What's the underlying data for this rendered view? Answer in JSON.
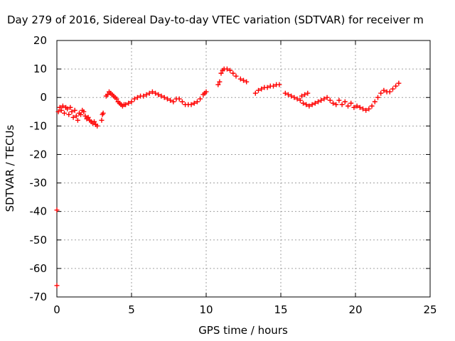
{
  "chart_data": {
    "type": "scatter",
    "title": "Day 279 of 2016, Sidereal Day-to-day VTEC variation (SDTVAR) for receiver m",
    "xlabel": "GPS time / hours",
    "ylabel": "SDTVAR / TECUs",
    "xlim": [
      0,
      25
    ],
    "ylim": [
      -70,
      20
    ],
    "x_ticks": [
      "0",
      "5",
      "10",
      "15",
      "20",
      "25"
    ],
    "y_ticks": [
      "20",
      "10",
      "0",
      "-10",
      "-20",
      "-30",
      "-40",
      "-50",
      "-60",
      "-70"
    ],
    "grid": true,
    "marker": "+",
    "series": [
      {
        "color": "#ff0000",
        "points": [
          [
            0.0,
            -39.5
          ],
          [
            0.0,
            -66.0
          ],
          [
            0.1,
            -5.0
          ],
          [
            0.2,
            -3.5
          ],
          [
            0.3,
            -4.5
          ],
          [
            0.4,
            -3.0
          ],
          [
            0.5,
            -5.5
          ],
          [
            0.6,
            -3.5
          ],
          [
            0.7,
            -4.0
          ],
          [
            0.8,
            -6.0
          ],
          [
            0.9,
            -3.5
          ],
          [
            1.0,
            -5.0
          ],
          [
            1.1,
            -7.0
          ],
          [
            1.2,
            -4.5
          ],
          [
            1.3,
            -6.5
          ],
          [
            1.4,
            -8.0
          ],
          [
            1.5,
            -5.5
          ],
          [
            1.6,
            -6.0
          ],
          [
            1.7,
            -4.5
          ],
          [
            1.8,
            -5.0
          ],
          [
            1.9,
            -6.5
          ],
          [
            2.0,
            -7.5
          ],
          [
            2.1,
            -7.0
          ],
          [
            2.2,
            -8.0
          ],
          [
            2.3,
            -8.5
          ],
          [
            2.4,
            -9.0
          ],
          [
            2.5,
            -8.5
          ],
          [
            2.6,
            -9.5
          ],
          [
            2.7,
            -10.0
          ],
          [
            3.0,
            -8.0
          ],
          [
            3.05,
            -6.0
          ],
          [
            3.1,
            -5.5
          ],
          [
            3.3,
            0.5
          ],
          [
            3.4,
            1.0
          ],
          [
            3.5,
            2.0
          ],
          [
            3.6,
            1.5
          ],
          [
            3.7,
            1.0
          ],
          [
            3.8,
            0.5
          ],
          [
            3.9,
            0.0
          ],
          [
            4.0,
            -0.5
          ],
          [
            4.1,
            -1.5
          ],
          [
            4.2,
            -2.0
          ],
          [
            4.3,
            -2.5
          ],
          [
            4.4,
            -3.0
          ],
          [
            4.5,
            -2.5
          ],
          [
            4.6,
            -2.5
          ],
          [
            4.8,
            -2.0
          ],
          [
            5.0,
            -1.5
          ],
          [
            5.2,
            -0.5
          ],
          [
            5.4,
            0.0
          ],
          [
            5.6,
            0.5
          ],
          [
            5.8,
            0.5
          ],
          [
            6.0,
            1.0
          ],
          [
            6.2,
            1.5
          ],
          [
            6.4,
            2.0
          ],
          [
            6.6,
            1.5
          ],
          [
            6.8,
            1.0
          ],
          [
            7.0,
            0.5
          ],
          [
            7.2,
            0.0
          ],
          [
            7.4,
            -0.5
          ],
          [
            7.6,
            -1.0
          ],
          [
            7.8,
            -1.5
          ],
          [
            8.0,
            -0.5
          ],
          [
            8.2,
            -0.5
          ],
          [
            8.4,
            -1.5
          ],
          [
            8.6,
            -2.5
          ],
          [
            8.8,
            -2.5
          ],
          [
            9.0,
            -2.5
          ],
          [
            9.2,
            -2.0
          ],
          [
            9.4,
            -1.5
          ],
          [
            9.6,
            -0.5
          ],
          [
            9.8,
            1.0
          ],
          [
            9.9,
            1.5
          ],
          [
            10.0,
            2.0
          ],
          [
            10.8,
            4.5
          ],
          [
            10.9,
            5.5
          ],
          [
            11.0,
            8.5
          ],
          [
            11.1,
            9.5
          ],
          [
            11.2,
            10.0
          ],
          [
            11.4,
            10.0
          ],
          [
            11.6,
            9.5
          ],
          [
            11.8,
            8.5
          ],
          [
            12.0,
            7.5
          ],
          [
            12.3,
            6.5
          ],
          [
            12.5,
            6.0
          ],
          [
            12.7,
            5.5
          ],
          [
            13.3,
            1.5
          ],
          [
            13.5,
            2.5
          ],
          [
            13.7,
            3.0
          ],
          [
            13.9,
            3.5
          ],
          [
            14.1,
            3.5
          ],
          [
            14.3,
            4.0
          ],
          [
            14.5,
            4.0
          ],
          [
            14.7,
            4.5
          ],
          [
            14.9,
            4.5
          ],
          [
            15.3,
            1.5
          ],
          [
            15.5,
            1.0
          ],
          [
            15.7,
            0.5
          ],
          [
            15.9,
            0.0
          ],
          [
            16.1,
            -0.5
          ],
          [
            16.3,
            -1.0
          ],
          [
            16.5,
            -2.0
          ],
          [
            16.7,
            -2.5
          ],
          [
            16.9,
            -3.0
          ],
          [
            17.1,
            -2.5
          ],
          [
            17.3,
            -2.0
          ],
          [
            17.5,
            -1.5
          ],
          [
            17.7,
            -1.0
          ],
          [
            17.9,
            -0.5
          ],
          [
            18.1,
            0.0
          ],
          [
            16.4,
            0.5
          ],
          [
            16.6,
            1.0
          ],
          [
            16.8,
            1.5
          ],
          [
            18.3,
            -1.0
          ],
          [
            18.5,
            -2.0
          ],
          [
            18.7,
            -2.5
          ],
          [
            18.9,
            -1.0
          ],
          [
            19.1,
            -2.5
          ],
          [
            19.3,
            -1.5
          ],
          [
            19.5,
            -3.0
          ],
          [
            19.7,
            -2.0
          ],
          [
            19.9,
            -3.5
          ],
          [
            20.1,
            -3.0
          ],
          [
            20.3,
            -3.5
          ],
          [
            20.5,
            -4.0
          ],
          [
            20.7,
            -4.5
          ],
          [
            20.9,
            -4.0
          ],
          [
            21.1,
            -3.0
          ],
          [
            21.3,
            -1.5
          ],
          [
            21.5,
            0.0
          ],
          [
            21.7,
            1.5
          ],
          [
            21.9,
            2.5
          ],
          [
            22.1,
            2.0
          ],
          [
            22.3,
            2.0
          ],
          [
            22.5,
            3.0
          ],
          [
            22.7,
            4.0
          ],
          [
            22.9,
            5.0
          ]
        ]
      }
    ]
  }
}
